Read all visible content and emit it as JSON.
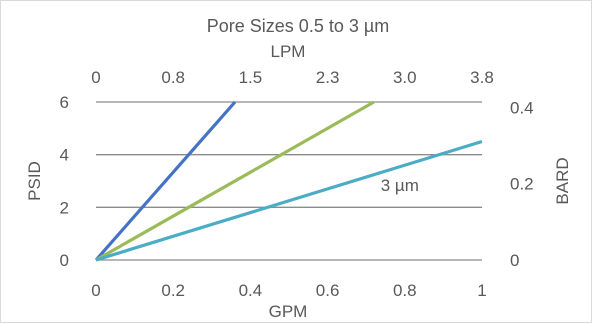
{
  "chart_data": {
    "type": "line",
    "title": "Pore Sizes 0.5 to 3 µm",
    "bottom_axis": {
      "label": "GPM",
      "range": [
        0,
        1
      ],
      "ticks": [
        "0",
        "0.2",
        "0.4",
        "0.6",
        "0.8",
        "1"
      ]
    },
    "top_axis": {
      "label": "LPM",
      "range": [
        0,
        3.8
      ],
      "ticks": [
        "0",
        "0.8",
        "1.5",
        "2.3",
        "3.0",
        "3.8"
      ]
    },
    "left_axis": {
      "label": "PSID",
      "range": [
        0,
        6
      ],
      "ticks": [
        "0",
        "2",
        "4",
        "6"
      ]
    },
    "right_axis": {
      "label": "BARD",
      "range": [
        0,
        0.414
      ],
      "ticks": [
        "0",
        "0.2",
        "0.4"
      ]
    },
    "grid": true,
    "series": [
      {
        "name": "",
        "color": "#4472C4",
        "x": [
          0,
          0.36
        ],
        "y": [
          0,
          6
        ]
      },
      {
        "name": "",
        "color": "#9BBB59",
        "x": [
          0,
          0.72
        ],
        "y": [
          0,
          6
        ]
      },
      {
        "name": "3 µm",
        "color": "#4BACC6",
        "x": [
          0,
          1
        ],
        "y": [
          0,
          4.5
        ]
      }
    ],
    "annotations": [
      {
        "text": "3 µm",
        "x": 0.8,
        "y": 2.85
      }
    ]
  }
}
